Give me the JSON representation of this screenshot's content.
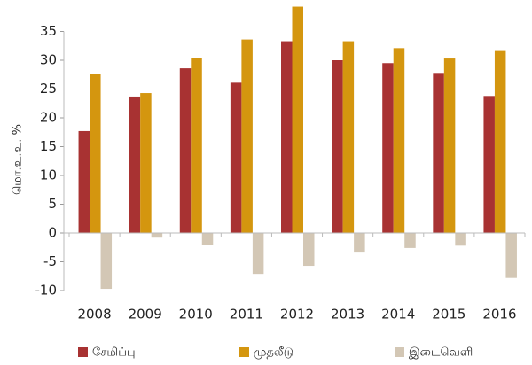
{
  "chart_data": {
    "type": "bar",
    "y_label": "மொ.உ.உ. %",
    "categories": [
      "2008",
      "2009",
      "2010",
      "2011",
      "2012",
      "2013",
      "2014",
      "2015",
      "2016"
    ],
    "series": [
      {
        "name": "சேமிப்பு",
        "color": "#a83232",
        "values": [
          17.7,
          23.7,
          28.6,
          26.1,
          33.3,
          30.0,
          29.5,
          27.8,
          23.8
        ]
      },
      {
        "name": "முதலீடு",
        "color": "#d4960f",
        "values": [
          27.6,
          24.3,
          30.4,
          33.6,
          39.3,
          33.3,
          32.1,
          30.3,
          31.6
        ]
      },
      {
        "name": "இடைவெளி",
        "color": "#d3c7b5",
        "values": [
          -9.7,
          -0.8,
          -2.0,
          -7.1,
          -5.7,
          -3.4,
          -2.6,
          -2.2,
          -7.8
        ]
      }
    ],
    "ylim": [
      -10,
      40
    ],
    "yticks": [
      -10,
      -5,
      0,
      5,
      10,
      15,
      20,
      25,
      30,
      35
    ],
    "legend": "bottom"
  }
}
